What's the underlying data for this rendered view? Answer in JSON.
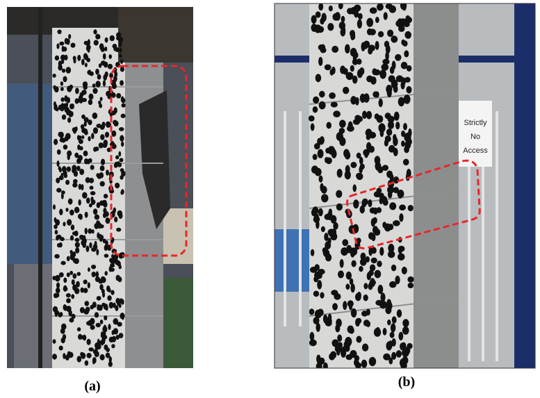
{
  "panels": [
    {
      "label": "(a)"
    },
    {
      "label": "(b)",
      "sign": [
        "Strictly",
        "No",
        "Access"
      ]
    }
  ]
}
